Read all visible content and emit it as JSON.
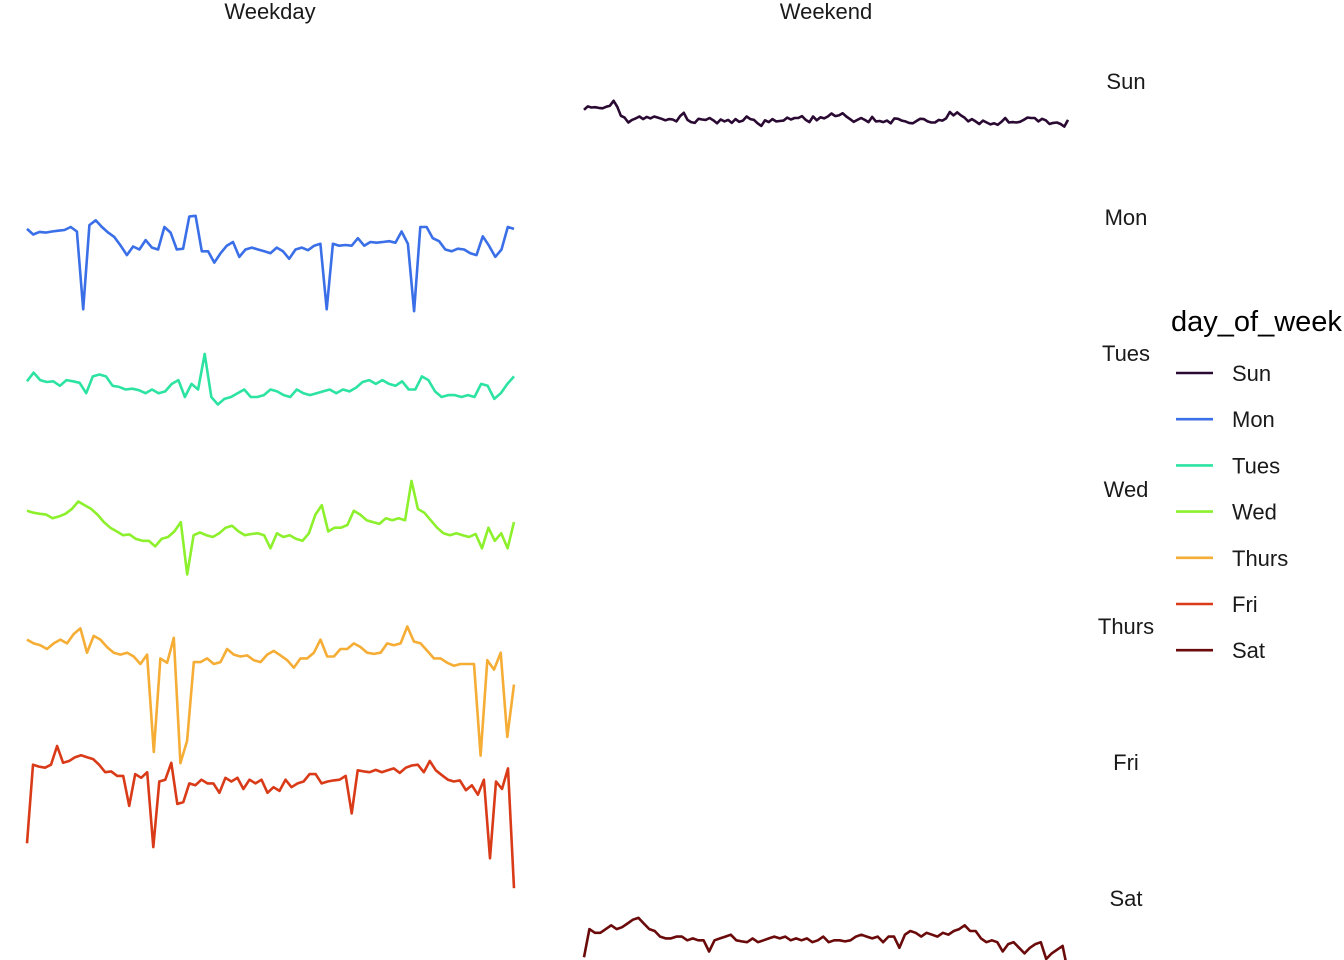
{
  "chart_data": {
    "type": "line",
    "title": "",
    "xlabel": "",
    "ylabel": "",
    "facets": {
      "columns": [
        "Weekday",
        "Weekend"
      ],
      "rows": [
        "Sun",
        "Mon",
        "Tues",
        "Wed",
        "Thurs",
        "Fri",
        "Sat"
      ]
    },
    "legend": {
      "title": "day_of_week",
      "placement": "right"
    },
    "ylim": [
      -1.5,
      1.5
    ],
    "grid": false,
    "series": [
      {
        "name": "Sun",
        "facet_col": "Weekend",
        "color": "#2a0a33",
        "values": [
          0.09,
          0.18,
          0.15,
          0.16,
          0.14,
          0.13,
          0.17,
          0.2,
          0.33,
          0.17,
          -0.07,
          -0.12,
          -0.25,
          -0.18,
          -0.14,
          -0.09,
          -0.16,
          -0.1,
          -0.14,
          -0.09,
          -0.12,
          -0.15,
          -0.19,
          -0.16,
          -0.17,
          -0.22,
          -0.08,
          0.01,
          -0.18,
          -0.24,
          -0.26,
          -0.15,
          -0.17,
          -0.18,
          -0.13,
          -0.19,
          -0.27,
          -0.17,
          -0.22,
          -0.18,
          -0.26,
          -0.16,
          -0.23,
          -0.2,
          -0.09,
          -0.16,
          -0.18,
          -0.27,
          -0.34,
          -0.19,
          -0.24,
          -0.16,
          -0.22,
          -0.21,
          -0.2,
          -0.12,
          -0.17,
          -0.13,
          -0.13,
          -0.08,
          -0.18,
          -0.24,
          -0.09,
          -0.19,
          -0.11,
          -0.14,
          -0.09,
          -0.01,
          -0.08,
          -0.06,
          0.0,
          -0.09,
          -0.16,
          -0.23,
          -0.18,
          -0.13,
          -0.18,
          -0.24,
          -0.1,
          -0.22,
          -0.21,
          -0.24,
          -0.2,
          -0.27,
          -0.14,
          -0.15,
          -0.2,
          -0.22,
          -0.26,
          -0.27,
          -0.21,
          -0.15,
          -0.16,
          -0.22,
          -0.25,
          -0.25,
          -0.18,
          -0.2,
          -0.14,
          0.03,
          -0.06,
          0.02,
          -0.06,
          -0.12,
          -0.22,
          -0.16,
          -0.22,
          -0.29,
          -0.2,
          -0.25,
          -0.3,
          -0.27,
          -0.31,
          -0.23,
          -0.13,
          -0.25,
          -0.24,
          -0.25,
          -0.23,
          -0.18,
          -0.12,
          -0.13,
          -0.13,
          -0.22,
          -0.15,
          -0.19,
          -0.29,
          -0.26,
          -0.25,
          -0.29,
          -0.36,
          -0.18
        ]
      },
      {
        "name": "Mon",
        "facet_col": "Weekday",
        "color": "#3a6fe8",
        "values": [
          0.55,
          0.4,
          0.47,
          0.45,
          0.48,
          0.5,
          0.52,
          0.6,
          0.48,
          -1.6,
          0.65,
          0.78,
          0.6,
          0.45,
          0.33,
          0.1,
          -0.15,
          0.08,
          0.0,
          0.25,
          0.05,
          0.0,
          0.6,
          0.45,
          0.0,
          0.02,
          0.88,
          0.9,
          -0.05,
          -0.05,
          -0.35,
          -0.1,
          0.1,
          0.2,
          -0.2,
          0.0,
          0.05,
          0.0,
          -0.05,
          -0.1,
          0.05,
          -0.05,
          -0.25,
          0.0,
          0.05,
          -0.02,
          0.1,
          0.15,
          -1.6,
          0.15,
          0.1,
          0.12,
          0.1,
          0.3,
          0.1,
          0.2,
          0.18,
          0.2,
          0.22,
          0.18,
          0.48,
          0.15,
          -1.65,
          0.6,
          0.6,
          0.3,
          0.22,
          0.0,
          -0.05,
          0.02,
          0.0,
          -0.1,
          -0.15,
          0.35,
          0.1,
          -0.2,
          0.0,
          0.6,
          0.55
        ]
      },
      {
        "name": "Tues",
        "facet_col": "Weekday",
        "color": "#2de3a1",
        "values": [
          0.12,
          0.35,
          0.15,
          0.1,
          0.12,
          0.0,
          0.15,
          0.12,
          0.08,
          -0.2,
          0.25,
          0.3,
          0.25,
          0.0,
          -0.03,
          -0.1,
          -0.08,
          -0.12,
          -0.2,
          -0.1,
          -0.2,
          -0.15,
          0.05,
          0.15,
          -0.3,
          0.05,
          -0.1,
          0.85,
          -0.3,
          -0.5,
          -0.35,
          -0.3,
          -0.2,
          -0.1,
          -0.3,
          -0.3,
          -0.25,
          -0.1,
          -0.15,
          -0.25,
          -0.3,
          -0.1,
          -0.2,
          -0.25,
          -0.2,
          -0.15,
          -0.1,
          -0.2,
          -0.1,
          -0.15,
          -0.05,
          0.1,
          0.15,
          0.05,
          0.15,
          0.05,
          0.0,
          0.12,
          -0.1,
          -0.1,
          0.25,
          0.15,
          -0.15,
          -0.3,
          -0.25,
          -0.25,
          -0.3,
          -0.25,
          -0.3,
          0.05,
          0.0,
          -0.35,
          -0.2,
          0.05,
          0.25
        ]
      },
      {
        "name": "Wed",
        "facet_col": "Weekday",
        "color": "#8cf02c",
        "values": [
          0.3,
          0.25,
          0.22,
          0.2,
          0.1,
          0.15,
          0.22,
          0.35,
          0.55,
          0.45,
          0.35,
          0.2,
          0.0,
          -0.15,
          -0.25,
          -0.35,
          -0.33,
          -0.45,
          -0.5,
          -0.5,
          -0.65,
          -0.45,
          -0.4,
          -0.25,
          0.0,
          -1.4,
          -0.35,
          -0.28,
          -0.35,
          -0.4,
          -0.3,
          -0.15,
          -0.1,
          -0.25,
          -0.35,
          -0.32,
          -0.3,
          -0.35,
          -0.7,
          -0.3,
          -0.4,
          -0.35,
          -0.45,
          -0.5,
          -0.3,
          0.2,
          0.45,
          -0.25,
          -0.15,
          -0.15,
          -0.08,
          0.3,
          0.2,
          0.05,
          0.0,
          -0.05,
          0.1,
          0.05,
          0.1,
          0.05,
          1.1,
          0.35,
          0.25,
          0.05,
          -0.15,
          -0.3,
          -0.35,
          -0.3,
          -0.35,
          -0.4,
          -0.32,
          -0.7,
          -0.15,
          -0.5,
          -0.3,
          -0.7,
          0.0
        ]
      },
      {
        "name": "Thurs",
        "facet_col": "Weekday",
        "color": "#f5ad35",
        "values": [
          0.5,
          0.4,
          0.35,
          0.25,
          0.4,
          0.5,
          0.4,
          0.65,
          0.8,
          0.15,
          0.6,
          0.5,
          0.3,
          0.15,
          0.1,
          0.15,
          0.05,
          -0.15,
          0.1,
          -2.5,
          0.0,
          -0.12,
          0.55,
          -2.8,
          -2.2,
          -0.1,
          -0.1,
          0.0,
          -0.15,
          -0.1,
          0.25,
          0.1,
          0.05,
          0.08,
          -0.05,
          -0.1,
          0.1,
          0.2,
          0.08,
          -0.05,
          -0.25,
          0.0,
          0.0,
          0.15,
          0.5,
          0.05,
          0.05,
          0.25,
          0.25,
          0.4,
          0.3,
          0.15,
          0.12,
          0.15,
          0.4,
          0.35,
          0.4,
          0.85,
          0.45,
          0.4,
          0.2,
          0.0,
          0.0,
          -0.12,
          -0.2,
          -0.15,
          -0.15,
          -0.15,
          -2.6,
          -0.05,
          -0.3,
          0.15,
          -2.1,
          -0.7
        ]
      },
      {
        "name": "Fri",
        "facet_col": "Weekday",
        "color": "#d93a18",
        "values": [
          -1.3,
          0.8,
          0.75,
          0.72,
          0.8,
          1.3,
          0.85,
          0.9,
          1.0,
          1.05,
          1.0,
          0.95,
          0.8,
          0.6,
          0.62,
          0.5,
          0.5,
          -0.3,
          0.55,
          0.45,
          0.6,
          -1.4,
          0.35,
          0.4,
          0.85,
          -0.25,
          -0.2,
          0.3,
          0.25,
          0.4,
          0.3,
          0.3,
          0.05,
          0.45,
          0.35,
          0.45,
          0.15,
          0.4,
          0.3,
          0.4,
          0.05,
          0.2,
          0.1,
          0.4,
          0.2,
          0.3,
          0.35,
          0.55,
          0.55,
          0.3,
          0.35,
          0.38,
          0.4,
          0.5,
          -0.5,
          0.65,
          0.62,
          0.6,
          0.66,
          0.6,
          0.65,
          0.7,
          0.58,
          0.72,
          0.78,
          0.8,
          0.6,
          0.9,
          0.65,
          0.52,
          0.4,
          0.35,
          0.38,
          0.12,
          0.25,
          0.0,
          0.4,
          -1.7,
          0.35,
          0.15,
          0.7,
          -2.5
        ]
      },
      {
        "name": "Sat",
        "facet_col": "Weekend",
        "color": "#6b0a0a",
        "values": [
          -0.7,
          0.05,
          -0.05,
          -0.05,
          0.05,
          0.15,
          0.05,
          0.1,
          0.2,
          0.3,
          0.35,
          0.2,
          0.05,
          0.0,
          -0.15,
          -0.2,
          -0.2,
          -0.15,
          -0.15,
          -0.25,
          -0.2,
          -0.25,
          -0.25,
          -0.55,
          -0.25,
          -0.2,
          -0.15,
          -0.1,
          -0.25,
          -0.28,
          -0.3,
          -0.2,
          -0.3,
          -0.25,
          -0.2,
          -0.15,
          -0.2,
          -0.15,
          -0.25,
          -0.2,
          -0.25,
          -0.2,
          -0.3,
          -0.25,
          -0.15,
          -0.3,
          -0.25,
          -0.25,
          -0.28,
          -0.25,
          -0.15,
          -0.1,
          -0.15,
          -0.2,
          -0.15,
          -0.3,
          -0.15,
          -0.15,
          -0.45,
          -0.1,
          0.0,
          -0.05,
          -0.15,
          -0.05,
          -0.1,
          -0.15,
          -0.05,
          -0.1,
          0.0,
          0.05,
          0.15,
          0.0,
          0.0,
          -0.2,
          -0.3,
          -0.25,
          -0.3,
          -0.55,
          -0.35,
          -0.3,
          -0.45,
          -0.6,
          -0.45,
          -0.35,
          -0.3,
          -0.75,
          -0.6,
          -0.5,
          -0.4,
          -1.1
        ]
      }
    ]
  }
}
